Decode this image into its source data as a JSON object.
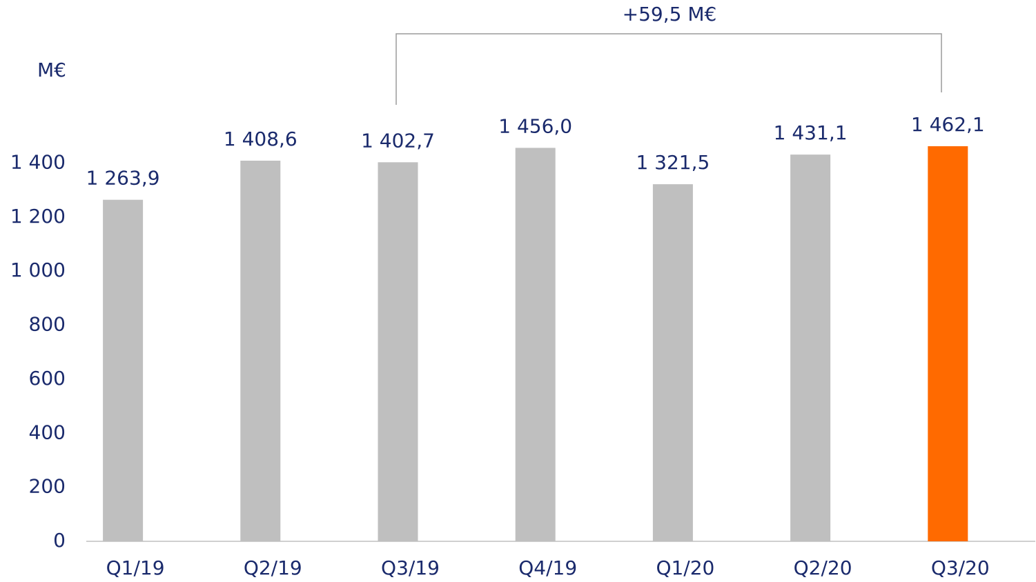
{
  "chart_data": {
    "type": "bar",
    "unit_label": "M€",
    "annotation": "+59,5 M€",
    "categories": [
      "Q1/19",
      "Q2/19",
      "Q3/19",
      "Q4/19",
      "Q1/20",
      "Q2/20",
      "Q3/20"
    ],
    "values": [
      1263.9,
      1408.6,
      1402.7,
      1456.0,
      1321.5,
      1431.1,
      1462.1
    ],
    "value_labels": [
      "1 263,9",
      "1 408,6",
      "1 402,7",
      "1 456,0",
      "1 321,5",
      "1 431,1",
      "1 462,1"
    ],
    "colors": [
      "#bfbfbf",
      "#bfbfbf",
      "#bfbfbf",
      "#bfbfbf",
      "#bfbfbf",
      "#bfbfbf",
      "#ff6a00"
    ],
    "ylim": [
      0,
      1600
    ],
    "yticks": [
      0,
      200,
      400,
      600,
      800,
      {
        "value": 1000,
        "label": "1 000"
      },
      {
        "value": 1200,
        "label": "1 200"
      },
      {
        "value": 1400,
        "label": "1 400"
      }
    ],
    "grid": false
  }
}
